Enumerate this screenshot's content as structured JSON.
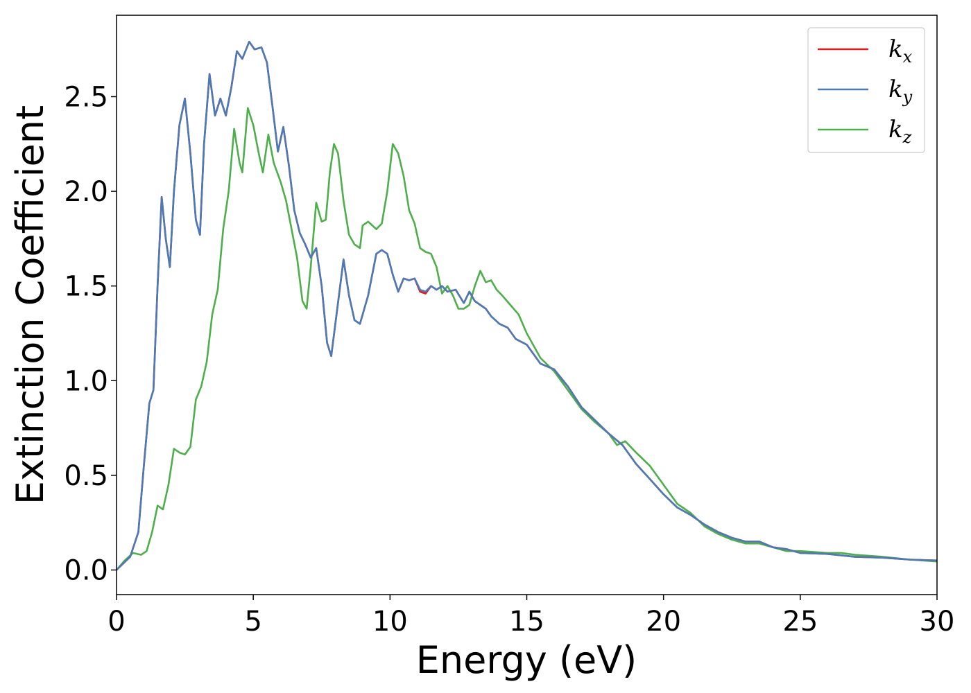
{
  "chart_data": {
    "type": "line",
    "title": "",
    "xlabel": "Energy (eV)",
    "ylabel": "Extinction Coefficient",
    "xlim": [
      0,
      30
    ],
    "ylim": [
      -0.13,
      2.93
    ],
    "xticks": [
      0,
      5,
      10,
      15,
      20,
      25,
      30
    ],
    "xtick_labels": [
      "0",
      "5",
      "10",
      "15",
      "20",
      "25",
      "30"
    ],
    "yticks": [
      0.0,
      0.5,
      1.0,
      1.5,
      2.0,
      2.5
    ],
    "ytick_labels": [
      "0.0",
      "0.5",
      "1.0",
      "1.5",
      "2.0",
      "2.5"
    ],
    "grid": false,
    "legend_position": "top-right",
    "series": [
      {
        "name": "k_x",
        "label_base": "k",
        "label_sub": "x",
        "color": "#e41a1c",
        "points": [
          [
            0,
            0.0
          ],
          [
            0.5,
            0.07
          ],
          [
            0.8,
            0.2
          ],
          [
            1.0,
            0.55
          ],
          [
            1.2,
            0.88
          ],
          [
            1.35,
            0.95
          ],
          [
            1.5,
            1.5
          ],
          [
            1.65,
            1.97
          ],
          [
            1.8,
            1.75
          ],
          [
            1.95,
            1.6
          ],
          [
            2.1,
            2.0
          ],
          [
            2.3,
            2.35
          ],
          [
            2.5,
            2.49
          ],
          [
            2.7,
            2.2
          ],
          [
            2.9,
            1.85
          ],
          [
            3.05,
            1.77
          ],
          [
            3.2,
            2.25
          ],
          [
            3.4,
            2.62
          ],
          [
            3.6,
            2.4
          ],
          [
            3.8,
            2.49
          ],
          [
            4.0,
            2.4
          ],
          [
            4.2,
            2.55
          ],
          [
            4.4,
            2.74
          ],
          [
            4.6,
            2.7
          ],
          [
            4.85,
            2.79
          ],
          [
            5.05,
            2.75
          ],
          [
            5.3,
            2.76
          ],
          [
            5.5,
            2.68
          ],
          [
            5.7,
            2.45
          ],
          [
            5.9,
            2.21
          ],
          [
            6.1,
            2.34
          ],
          [
            6.3,
            2.14
          ],
          [
            6.5,
            1.9
          ],
          [
            6.7,
            1.78
          ],
          [
            6.9,
            1.72
          ],
          [
            7.1,
            1.65
          ],
          [
            7.3,
            1.7
          ],
          [
            7.5,
            1.5
          ],
          [
            7.7,
            1.2
          ],
          [
            7.85,
            1.13
          ],
          [
            8.0,
            1.3
          ],
          [
            8.3,
            1.64
          ],
          [
            8.5,
            1.45
          ],
          [
            8.7,
            1.32
          ],
          [
            8.9,
            1.3
          ],
          [
            9.2,
            1.45
          ],
          [
            9.5,
            1.67
          ],
          [
            9.7,
            1.69
          ],
          [
            9.9,
            1.67
          ],
          [
            10.1,
            1.56
          ],
          [
            10.3,
            1.47
          ],
          [
            10.5,
            1.54
          ],
          [
            10.7,
            1.53
          ],
          [
            10.9,
            1.54
          ],
          [
            11.1,
            1.47
          ],
          [
            11.3,
            1.46
          ],
          [
            11.5,
            1.5
          ],
          [
            11.7,
            1.48
          ],
          [
            11.9,
            1.5
          ],
          [
            12.1,
            1.47
          ],
          [
            12.4,
            1.48
          ],
          [
            12.7,
            1.41
          ],
          [
            12.9,
            1.47
          ],
          [
            13.1,
            1.42
          ],
          [
            13.3,
            1.4
          ],
          [
            13.5,
            1.38
          ],
          [
            13.7,
            1.34
          ],
          [
            14.0,
            1.3
          ],
          [
            14.3,
            1.28
          ],
          [
            14.6,
            1.22
          ],
          [
            15.0,
            1.19
          ],
          [
            15.5,
            1.09
          ],
          [
            16.0,
            1.06
          ],
          [
            16.5,
            0.97
          ],
          [
            17.0,
            0.86
          ],
          [
            17.5,
            0.79
          ],
          [
            18.0,
            0.72
          ],
          [
            18.5,
            0.66
          ],
          [
            19.0,
            0.56
          ],
          [
            19.5,
            0.48
          ],
          [
            20.0,
            0.4
          ],
          [
            20.5,
            0.33
          ],
          [
            21.0,
            0.29
          ],
          [
            21.5,
            0.24
          ],
          [
            22.0,
            0.2
          ],
          [
            22.5,
            0.17
          ],
          [
            23.0,
            0.15
          ],
          [
            23.5,
            0.15
          ],
          [
            24.0,
            0.12
          ],
          [
            24.5,
            0.11
          ],
          [
            25.0,
            0.09
          ],
          [
            26.0,
            0.085
          ],
          [
            27.0,
            0.07
          ],
          [
            28.0,
            0.065
          ],
          [
            29.0,
            0.055
          ],
          [
            30.0,
            0.05
          ]
        ]
      },
      {
        "name": "k_y",
        "label_base": "k",
        "label_sub": "y",
        "color": "#4a7ab8",
        "points": [
          [
            0,
            0.0
          ],
          [
            0.5,
            0.07
          ],
          [
            0.8,
            0.2
          ],
          [
            1.0,
            0.55
          ],
          [
            1.2,
            0.88
          ],
          [
            1.35,
            0.95
          ],
          [
            1.5,
            1.5
          ],
          [
            1.65,
            1.97
          ],
          [
            1.8,
            1.75
          ],
          [
            1.95,
            1.6
          ],
          [
            2.1,
            2.0
          ],
          [
            2.3,
            2.35
          ],
          [
            2.5,
            2.49
          ],
          [
            2.7,
            2.2
          ],
          [
            2.9,
            1.85
          ],
          [
            3.05,
            1.77
          ],
          [
            3.2,
            2.25
          ],
          [
            3.4,
            2.62
          ],
          [
            3.6,
            2.4
          ],
          [
            3.8,
            2.49
          ],
          [
            4.0,
            2.4
          ],
          [
            4.2,
            2.55
          ],
          [
            4.4,
            2.74
          ],
          [
            4.6,
            2.7
          ],
          [
            4.85,
            2.79
          ],
          [
            5.05,
            2.75
          ],
          [
            5.3,
            2.76
          ],
          [
            5.5,
            2.68
          ],
          [
            5.7,
            2.45
          ],
          [
            5.9,
            2.21
          ],
          [
            6.1,
            2.34
          ],
          [
            6.3,
            2.14
          ],
          [
            6.5,
            1.9
          ],
          [
            6.7,
            1.78
          ],
          [
            6.9,
            1.72
          ],
          [
            7.1,
            1.65
          ],
          [
            7.3,
            1.7
          ],
          [
            7.5,
            1.5
          ],
          [
            7.7,
            1.2
          ],
          [
            7.85,
            1.13
          ],
          [
            8.0,
            1.3
          ],
          [
            8.3,
            1.64
          ],
          [
            8.5,
            1.45
          ],
          [
            8.7,
            1.32
          ],
          [
            8.9,
            1.3
          ],
          [
            9.2,
            1.45
          ],
          [
            9.5,
            1.67
          ],
          [
            9.7,
            1.69
          ],
          [
            9.9,
            1.67
          ],
          [
            10.1,
            1.56
          ],
          [
            10.3,
            1.47
          ],
          [
            10.5,
            1.54
          ],
          [
            10.7,
            1.53
          ],
          [
            10.9,
            1.54
          ],
          [
            11.1,
            1.48
          ],
          [
            11.3,
            1.47
          ],
          [
            11.5,
            1.5
          ],
          [
            11.7,
            1.48
          ],
          [
            11.9,
            1.5
          ],
          [
            12.1,
            1.47
          ],
          [
            12.4,
            1.48
          ],
          [
            12.7,
            1.41
          ],
          [
            12.9,
            1.47
          ],
          [
            13.1,
            1.42
          ],
          [
            13.3,
            1.4
          ],
          [
            13.5,
            1.38
          ],
          [
            13.7,
            1.34
          ],
          [
            14.0,
            1.3
          ],
          [
            14.3,
            1.28
          ],
          [
            14.6,
            1.22
          ],
          [
            15.0,
            1.19
          ],
          [
            15.5,
            1.09
          ],
          [
            16.0,
            1.06
          ],
          [
            16.5,
            0.97
          ],
          [
            17.0,
            0.86
          ],
          [
            17.5,
            0.79
          ],
          [
            18.0,
            0.72
          ],
          [
            18.5,
            0.66
          ],
          [
            19.0,
            0.56
          ],
          [
            19.5,
            0.48
          ],
          [
            20.0,
            0.4
          ],
          [
            20.5,
            0.33
          ],
          [
            21.0,
            0.29
          ],
          [
            21.5,
            0.24
          ],
          [
            22.0,
            0.2
          ],
          [
            22.5,
            0.17
          ],
          [
            23.0,
            0.15
          ],
          [
            23.5,
            0.15
          ],
          [
            24.0,
            0.12
          ],
          [
            24.5,
            0.11
          ],
          [
            25.0,
            0.09
          ],
          [
            26.0,
            0.085
          ],
          [
            27.0,
            0.07
          ],
          [
            28.0,
            0.065
          ],
          [
            29.0,
            0.055
          ],
          [
            30.0,
            0.05
          ]
        ]
      },
      {
        "name": "k_z",
        "label_base": "k",
        "label_sub": "z",
        "color": "#4daf4a",
        "points": [
          [
            0,
            0.0
          ],
          [
            0.3,
            0.05
          ],
          [
            0.6,
            0.09
          ],
          [
            0.9,
            0.08
          ],
          [
            1.1,
            0.1
          ],
          [
            1.3,
            0.2
          ],
          [
            1.5,
            0.34
          ],
          [
            1.7,
            0.32
          ],
          [
            1.9,
            0.45
          ],
          [
            2.1,
            0.64
          ],
          [
            2.3,
            0.62
          ],
          [
            2.5,
            0.61
          ],
          [
            2.7,
            0.65
          ],
          [
            2.9,
            0.9
          ],
          [
            3.1,
            0.97
          ],
          [
            3.3,
            1.1
          ],
          [
            3.5,
            1.35
          ],
          [
            3.7,
            1.48
          ],
          [
            3.9,
            1.8
          ],
          [
            4.1,
            2.0
          ],
          [
            4.3,
            2.33
          ],
          [
            4.5,
            2.15
          ],
          [
            4.6,
            2.1
          ],
          [
            4.8,
            2.44
          ],
          [
            5.0,
            2.35
          ],
          [
            5.2,
            2.2
          ],
          [
            5.35,
            2.1
          ],
          [
            5.55,
            2.3
          ],
          [
            5.75,
            2.15
          ],
          [
            6.0,
            2.05
          ],
          [
            6.2,
            1.95
          ],
          [
            6.4,
            1.8
          ],
          [
            6.6,
            1.65
          ],
          [
            6.8,
            1.42
          ],
          [
            6.95,
            1.38
          ],
          [
            7.1,
            1.6
          ],
          [
            7.3,
            1.94
          ],
          [
            7.5,
            1.84
          ],
          [
            7.65,
            1.85
          ],
          [
            7.8,
            2.1
          ],
          [
            7.95,
            2.25
          ],
          [
            8.1,
            2.2
          ],
          [
            8.3,
            1.95
          ],
          [
            8.5,
            1.77
          ],
          [
            8.7,
            1.72
          ],
          [
            8.9,
            1.7
          ],
          [
            9.0,
            1.82
          ],
          [
            9.2,
            1.84
          ],
          [
            9.5,
            1.8
          ],
          [
            9.7,
            1.83
          ],
          [
            9.9,
            2.0
          ],
          [
            10.1,
            2.25
          ],
          [
            10.3,
            2.2
          ],
          [
            10.5,
            2.08
          ],
          [
            10.7,
            1.9
          ],
          [
            10.9,
            1.83
          ],
          [
            11.1,
            1.7
          ],
          [
            11.3,
            1.68
          ],
          [
            11.5,
            1.67
          ],
          [
            11.7,
            1.6
          ],
          [
            11.9,
            1.46
          ],
          [
            12.1,
            1.5
          ],
          [
            12.3,
            1.45
          ],
          [
            12.5,
            1.38
          ],
          [
            12.7,
            1.38
          ],
          [
            12.9,
            1.4
          ],
          [
            13.1,
            1.5
          ],
          [
            13.3,
            1.58
          ],
          [
            13.5,
            1.52
          ],
          [
            13.7,
            1.53
          ],
          [
            13.9,
            1.48
          ],
          [
            14.1,
            1.45
          ],
          [
            14.4,
            1.4
          ],
          [
            14.7,
            1.35
          ],
          [
            15.0,
            1.25
          ],
          [
            15.5,
            1.12
          ],
          [
            16.0,
            1.05
          ],
          [
            16.5,
            0.95
          ],
          [
            17.0,
            0.85
          ],
          [
            17.5,
            0.78
          ],
          [
            18.0,
            0.72
          ],
          [
            18.3,
            0.66
          ],
          [
            18.6,
            0.68
          ],
          [
            19.0,
            0.62
          ],
          [
            19.5,
            0.55
          ],
          [
            20.0,
            0.45
          ],
          [
            20.5,
            0.35
          ],
          [
            21.0,
            0.3
          ],
          [
            21.5,
            0.23
          ],
          [
            22.0,
            0.19
          ],
          [
            22.5,
            0.16
          ],
          [
            23.0,
            0.14
          ],
          [
            23.5,
            0.14
          ],
          [
            24.0,
            0.12
          ],
          [
            24.5,
            0.1
          ],
          [
            25.0,
            0.1
          ],
          [
            26.0,
            0.09
          ],
          [
            26.5,
            0.09
          ],
          [
            27.0,
            0.08
          ],
          [
            28.0,
            0.07
          ],
          [
            29.0,
            0.055
          ],
          [
            30.0,
            0.045
          ]
        ]
      }
    ]
  }
}
